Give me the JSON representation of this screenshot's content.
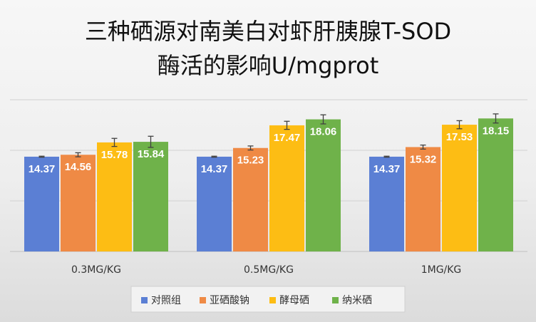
{
  "chart_data": {
    "type": "bar",
    "title_line1": "三种硒源对南美白对虾肝胰腺T-SOD",
    "title_line2": "酶活的影响U/mgprot",
    "categories": [
      "0.3MG/KG",
      "0.5MG/KG",
      "1MG/KG"
    ],
    "series": [
      {
        "name": "对照组",
        "color": "#5b7fd4",
        "values": [
          14.37,
          14.37,
          14.37
        ],
        "errors": [
          0.05,
          0.05,
          0.05
        ]
      },
      {
        "name": "亚硒酸钠",
        "color": "#ef8a45",
        "values": [
          14.56,
          15.23,
          15.32
        ],
        "errors": [
          0.2,
          0.2,
          0.2
        ]
      },
      {
        "name": "酵母硒",
        "color": "#fdbd14",
        "values": [
          15.78,
          17.47,
          17.53
        ],
        "errors": [
          0.4,
          0.4,
          0.4
        ]
      },
      {
        "name": "纳米硒",
        "color": "#6fb24a",
        "values": [
          15.84,
          18.06,
          18.15
        ],
        "errors": [
          0.55,
          0.45,
          0.45
        ]
      }
    ],
    "ylim": [
      5,
      20
    ],
    "grid": true,
    "legend_position": "bottom"
  }
}
